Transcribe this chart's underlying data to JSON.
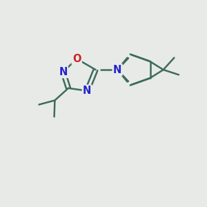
{
  "bg_color": "#e8eae8",
  "bond_color": "#3d6b5e",
  "N_color": "#2222cc",
  "O_color": "#cc2222",
  "bond_width": 1.8,
  "font_size": 10.5,
  "fig_bg": "#e8eae8",
  "xlim": [
    0,
    10
  ],
  "ylim": [
    0,
    10
  ]
}
